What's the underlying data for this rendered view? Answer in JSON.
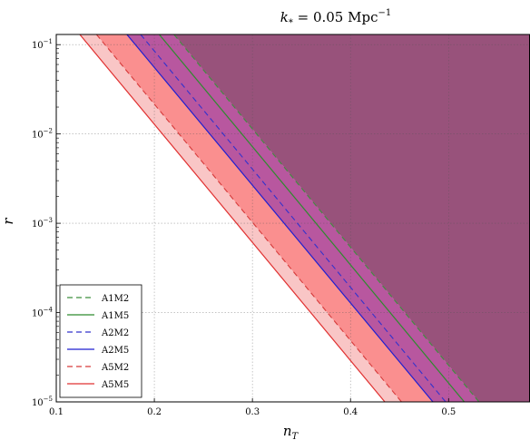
{
  "chart_data": {
    "type": "area",
    "title": "k* = 0.05 Mpc⁻¹",
    "title_parts": {
      "base": "k",
      "sub": "*",
      "mid": " = 0.05 Mpc",
      "sup": "−1"
    },
    "xlabel": {
      "base": "n",
      "sub": "T"
    },
    "ylabel": "r",
    "xlim": [
      0.1,
      0.583
    ],
    "ylim": [
      1e-05,
      0.13
    ],
    "yscale": "log",
    "grid": true,
    "x_ticks": [
      "0.1",
      "0.2",
      "0.3",
      "0.4",
      "0.5"
    ],
    "x_tick_values": [
      0.1,
      0.2,
      0.3,
      0.4,
      0.5
    ],
    "y_ticks": [
      {
        "value": 1e-05,
        "base": "10",
        "exp": "−5"
      },
      {
        "value": 0.0001,
        "base": "10",
        "exp": "−4"
      },
      {
        "value": 0.001,
        "base": "10",
        "exp": "−3"
      },
      {
        "value": 0.01,
        "base": "10",
        "exp": "−2"
      },
      {
        "value": 0.1,
        "base": "10",
        "exp": "−1"
      }
    ],
    "legend_position": "lower-left",
    "series": [
      {
        "name": "A1M2",
        "style": "dashed",
        "color": "#3f8f3f",
        "points": [
          [
            0.22,
            0.13
          ],
          [
            0.531,
            1e-05
          ]
        ]
      },
      {
        "name": "A1M5",
        "style": "solid",
        "color": "#2e8b2e",
        "points": [
          [
            0.205,
            0.13
          ],
          [
            0.516,
            1e-05
          ]
        ]
      },
      {
        "name": "A2M2",
        "style": "dashed",
        "color": "#3333cc",
        "points": [
          [
            0.186,
            0.13
          ],
          [
            0.497,
            1e-05
          ]
        ]
      },
      {
        "name": "A2M5",
        "style": "solid",
        "color": "#1f1fd0",
        "points": [
          [
            0.172,
            0.13
          ],
          [
            0.484,
            1e-05
          ]
        ]
      },
      {
        "name": "A5M2",
        "style": "dashed",
        "color": "#d63a3a",
        "points": [
          [
            0.141,
            0.13
          ],
          [
            0.452,
            1e-05
          ]
        ]
      },
      {
        "name": "A5M5",
        "style": "solid",
        "color": "#e03030",
        "points": [
          [
            0.124,
            0.13
          ],
          [
            0.435,
            1e-05
          ]
        ]
      }
    ],
    "regions": [
      {
        "id": "band-light-pink",
        "color": "#f9c6c6",
        "between": [
          "A5M5",
          "A5M2"
        ]
      },
      {
        "id": "band-salmon",
        "color": "#fa8f8f",
        "between": [
          "A5M2",
          "A2M5"
        ]
      },
      {
        "id": "band-magenta",
        "color": "#b8579f",
        "between": [
          "A2M5",
          "A1M2"
        ]
      },
      {
        "id": "region-excluded",
        "color": "#98527b",
        "between": [
          "A1M2",
          "right-edge"
        ]
      }
    ]
  }
}
